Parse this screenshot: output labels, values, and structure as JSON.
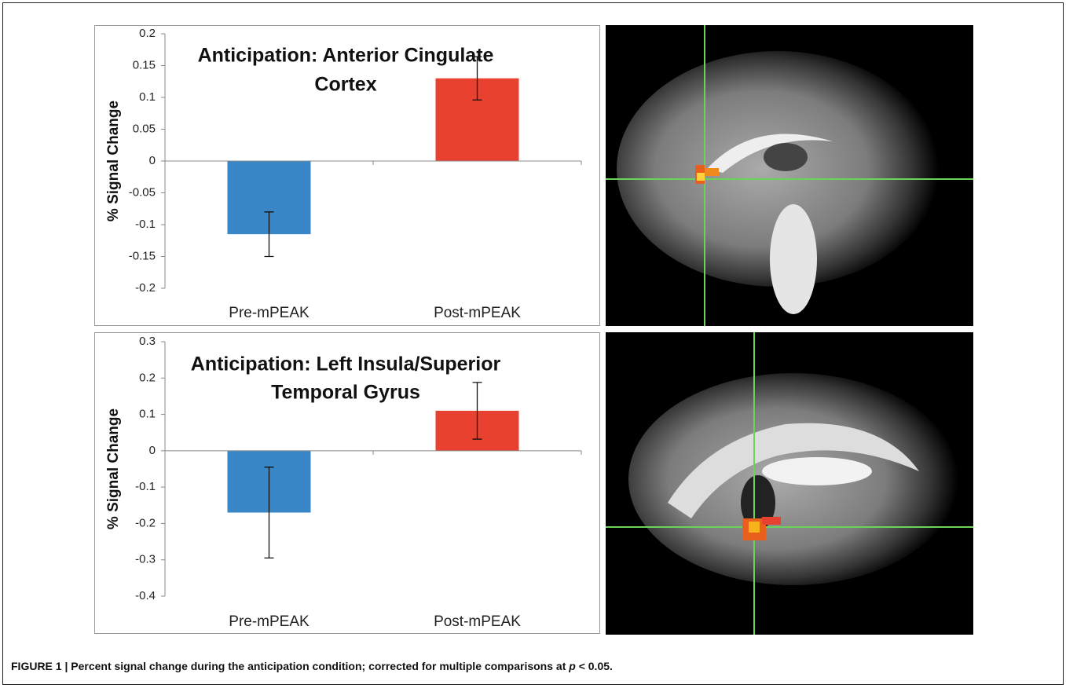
{
  "chart_data": [
    {
      "type": "bar",
      "title": [
        "Anticipation: Anterior Cingulate",
        "Cortex"
      ],
      "y_label": "% Signal Change",
      "categories": [
        "Pre-mPEAK",
        "Post-mPEAK"
      ],
      "values": [
        -0.115,
        0.13
      ],
      "errors": [
        0.035,
        0.034
      ],
      "colors": [
        "#3a87c8",
        "#e8412f"
      ],
      "ylim": [
        -0.2,
        0.2
      ],
      "yticks": [
        0.2,
        0.15,
        0.1,
        0.05,
        0,
        -0.05,
        -0.1,
        -0.15,
        -0.2
      ]
    },
    {
      "type": "bar",
      "title": [
        "Anticipation: Left Insula/Superior",
        "Temporal Gyrus"
      ],
      "y_label": "% Signal Change",
      "categories": [
        "Pre-mPEAK",
        "Post-mPEAK"
      ],
      "values": [
        -0.17,
        0.11
      ],
      "errors": [
        0.125,
        0.078
      ],
      "colors": [
        "#3a87c8",
        "#e8412f"
      ],
      "ylim": [
        -0.4,
        0.3
      ],
      "yticks": [
        0.3,
        0.2,
        0.1,
        0,
        -0.1,
        -0.2,
        -0.3,
        -0.4
      ]
    }
  ],
  "caption": {
    "label": "FIGURE 1 | Percent signal change during the anticipation condition; corrected for multiple comparisons at ",
    "p": "p",
    "rest": " < 0.05."
  }
}
